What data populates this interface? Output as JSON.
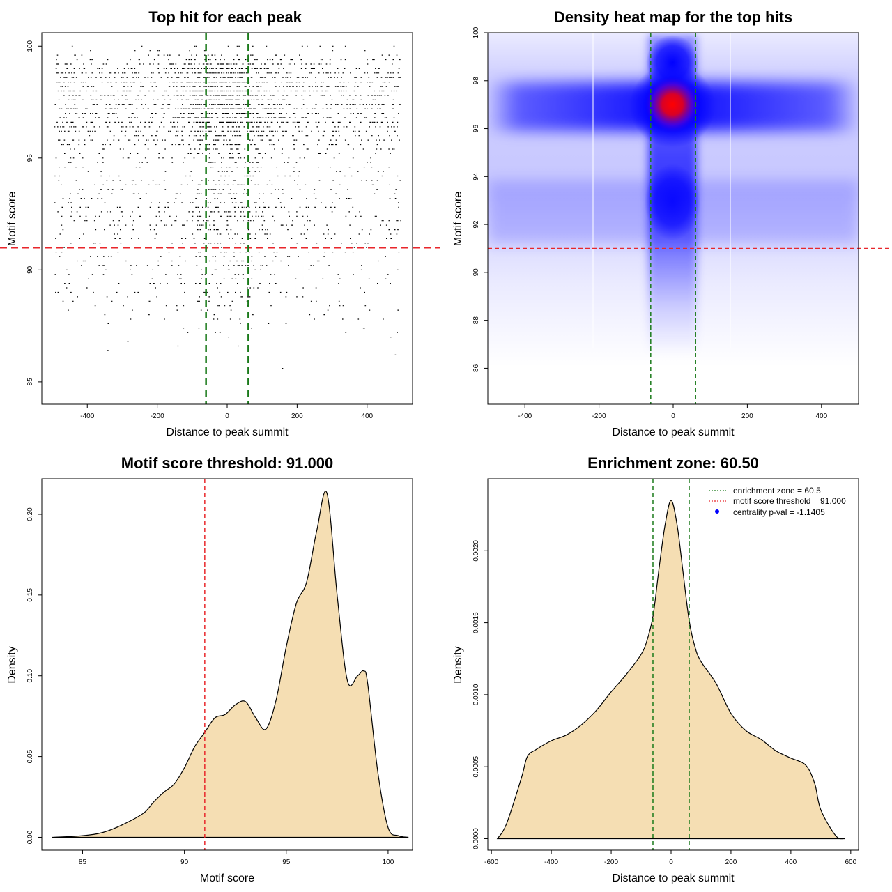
{
  "colors": {
    "threshold_line": "#e8262b",
    "zone_line": "#1a7a1a",
    "fill": "#f5deb3",
    "heat_low": "#ffffff",
    "heat_mid": "#0000ff",
    "heat_high": "#ff0000",
    "legend_point": "#0000ff"
  },
  "chart_data": [
    {
      "type": "scatter",
      "title": "Top hit for each peak",
      "xlabel": "Distance to peak summit",
      "ylabel": "Motif score",
      "xlim": [
        -530,
        530
      ],
      "ylim": [
        84.0,
        100.6
      ],
      "xticks": [
        -400,
        -200,
        0,
        200,
        400
      ],
      "yticks": [
        85,
        90,
        95,
        100
      ],
      "threshold_y": 91.0,
      "zone_x": [
        -60.5,
        60.5
      ],
      "points_description_x_range": [
        -500,
        500
      ],
      "points_y_range": [
        84.5,
        100
      ],
      "densest_region": {
        "x": 0,
        "y": 97
      }
    },
    {
      "type": "heatmap",
      "title": "Density heat map for the top hits",
      "xlabel": "Distance to peak summit",
      "ylabel": "Motif score",
      "xlim": [
        -500,
        500
      ],
      "ylim": [
        84.5,
        100
      ],
      "xticks": [
        -400,
        -200,
        0,
        200,
        400
      ],
      "yticks": [
        86,
        88,
        90,
        92,
        94,
        96,
        98,
        100
      ],
      "threshold_y": 91.0,
      "zone_x": [
        -60.5,
        60.5
      ],
      "peak": {
        "x": 0,
        "y": 97
      }
    },
    {
      "type": "area",
      "title": "Motif score threshold: 91.000",
      "xlabel": "Motif score",
      "ylabel": "Density",
      "xlim": [
        83.0,
        101.2
      ],
      "ylim": [
        -0.008,
        0.222
      ],
      "xticks": [
        85,
        90,
        95,
        100
      ],
      "yticks": [
        0.0,
        0.05,
        0.1,
        0.15,
        0.2
      ],
      "ytick_labels": [
        "0.00",
        "0.05",
        "0.10",
        "0.15",
        "0.20"
      ],
      "threshold_x": 91.0,
      "x": [
        83.5,
        85.0,
        86.0,
        87.0,
        88.0,
        88.5,
        89.0,
        89.5,
        90.0,
        90.5,
        91.0,
        91.5,
        92.0,
        92.5,
        93.0,
        93.5,
        94.0,
        94.5,
        95.0,
        95.5,
        96.0,
        96.5,
        97.0,
        97.5,
        98.0,
        98.5,
        98.8,
        99.0,
        99.5,
        100.0,
        100.5,
        101.0
      ],
      "y": [
        0.0,
        0.001,
        0.003,
        0.008,
        0.015,
        0.022,
        0.028,
        0.033,
        0.043,
        0.056,
        0.065,
        0.074,
        0.076,
        0.082,
        0.084,
        0.074,
        0.067,
        0.085,
        0.118,
        0.145,
        0.158,
        0.19,
        0.213,
        0.15,
        0.097,
        0.1,
        0.103,
        0.095,
        0.04,
        0.006,
        0.001,
        0.0
      ]
    },
    {
      "type": "area",
      "title": "Enrichment zone: 60.50",
      "xlabel": "Distance to peak summit",
      "ylabel": "Density",
      "xlim": [
        -612,
        626
      ],
      "ylim": [
        -8e-05,
        0.0025
      ],
      "xticks": [
        -600,
        -400,
        -200,
        0,
        200,
        400,
        600
      ],
      "yticks": [
        0.0,
        0.0005,
        0.001,
        0.0015,
        0.002
      ],
      "ytick_labels": [
        "0.0000",
        "0.0005",
        "0.0010",
        "0.0015",
        "0.0020"
      ],
      "zone_x": [
        -60.5,
        60.5
      ],
      "x": [
        -580,
        -550,
        -500,
        -480,
        -450,
        -400,
        -350,
        -300,
        -250,
        -200,
        -150,
        -100,
        -80,
        -60,
        -40,
        -20,
        0,
        20,
        40,
        60,
        80,
        100,
        150,
        200,
        250,
        300,
        350,
        400,
        450,
        480,
        500,
        550,
        580
      ],
      "y": [
        0.0,
        0.0001,
        0.00042,
        0.00057,
        0.00062,
        0.00068,
        0.00072,
        0.00079,
        0.00089,
        0.00102,
        0.00114,
        0.00128,
        0.00138,
        0.00155,
        0.00188,
        0.00218,
        0.00235,
        0.00218,
        0.00185,
        0.00152,
        0.00133,
        0.00123,
        0.00108,
        0.00087,
        0.00075,
        0.00069,
        0.00061,
        0.00056,
        0.00051,
        0.00038,
        0.0002,
        2e-05,
        0.0
      ],
      "legend": [
        {
          "label": "enrichment zone = 60.5",
          "kind": "dotted-line",
          "color": "#1a7a1a"
        },
        {
          "label": "motif score threshold = 91.000",
          "kind": "dotted-line",
          "color": "#e8262b"
        },
        {
          "label": "centrality p-val = -1.1405",
          "kind": "point",
          "color": "#0000ff"
        }
      ],
      "legend_position": "top-right"
    }
  ]
}
